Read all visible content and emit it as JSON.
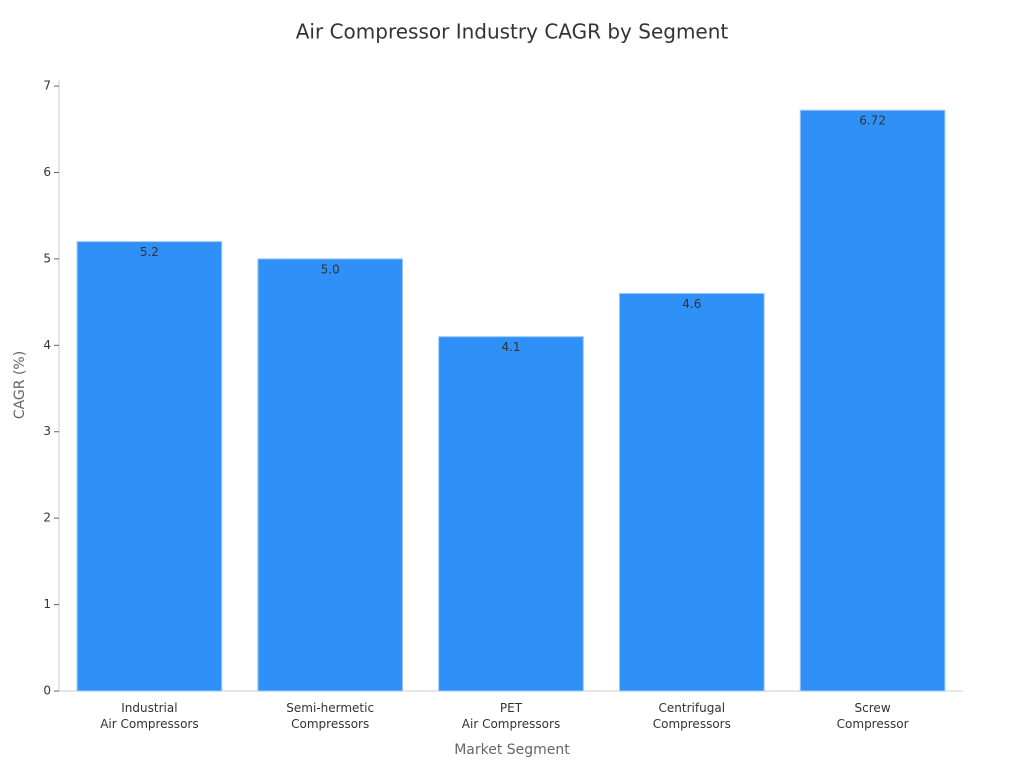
{
  "chart_data": {
    "type": "bar",
    "title": "Air Compressor Industry CAGR by Segment",
    "x_label": "Market Segment",
    "y_label": "CAGR (%)",
    "categories": [
      "Industrial\nAir Compressors",
      "Semi-hermetic\nCompressors",
      "PET\nAir Compressors",
      "Centrifugal\nCompressors",
      "Screw\nCompressor"
    ],
    "values": [
      5.2,
      5.0,
      4.1,
      4.6,
      6.72
    ],
    "value_labels": [
      "5.2",
      "5.0",
      "4.1",
      "4.6",
      "6.72"
    ],
    "color": "#2f91f7",
    "ylim": [
      0,
      7.07
    ],
    "yticks": [
      0,
      1,
      2,
      3,
      4,
      5,
      6,
      7
    ],
    "grid": false
  }
}
